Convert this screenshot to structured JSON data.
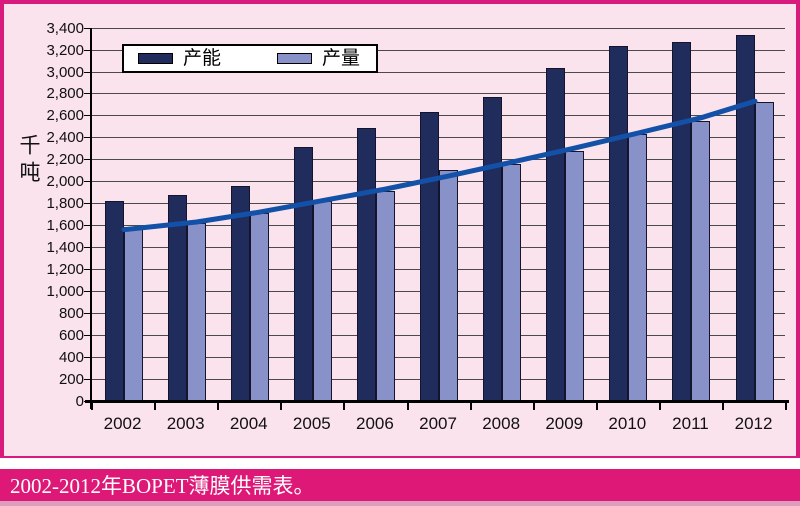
{
  "chart_data": {
    "type": "bar",
    "title": "",
    "categories": [
      "2002",
      "2003",
      "2004",
      "2005",
      "2006",
      "2007",
      "2008",
      "2009",
      "2010",
      "2011",
      "2012"
    ],
    "series": [
      {
        "name": "产能",
        "color": "#1F2C5C",
        "values": [
          1820,
          1880,
          1960,
          2310,
          2490,
          2630,
          2770,
          3030,
          3230,
          3270,
          3330
        ]
      },
      {
        "name": "产量",
        "color": "#8992C8",
        "values": [
          1580,
          1620,
          1710,
          1820,
          1910,
          2100,
          2160,
          2280,
          2430,
          2550,
          2720
        ]
      }
    ],
    "trend_line": {
      "series_ref": "产量",
      "color": "#1350A8",
      "values": [
        1560,
        1630,
        1720,
        1825,
        1930,
        2050,
        2175,
        2305,
        2440,
        2580,
        2730
      ]
    },
    "xlabel": "",
    "ylabel": "千吨",
    "ylim": [
      0,
      3400
    ],
    "ytick_step": 200,
    "grid": true,
    "legend_position": "top-left",
    "plot_bg": "#FAE3EC",
    "gridline_color": "#4a4a4a"
  },
  "caption": {
    "text": "2002-2012年BOPET薄膜供需表。",
    "bar_color": "#DE1877",
    "text_color": "#ffffff"
  },
  "frame": {
    "border_color": "#D81A7C",
    "bottom_strip_color": "#DB9CBD"
  }
}
